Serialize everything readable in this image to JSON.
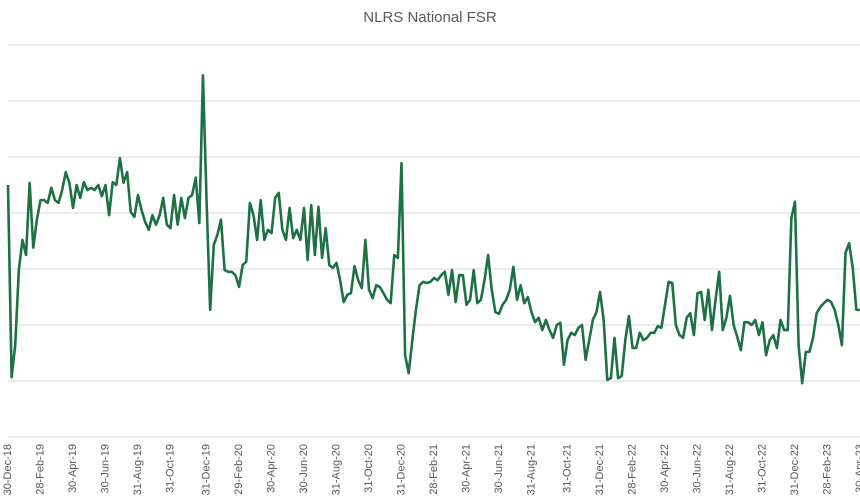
{
  "chart_data": {
    "type": "line",
    "title": "NLRS National FSR",
    "categories": [
      "30-Dec-18",
      null,
      null,
      null,
      null,
      null,
      null,
      null,
      null,
      "28-Feb-19",
      null,
      null,
      null,
      null,
      null,
      null,
      null,
      null,
      "30-Apr-19",
      null,
      null,
      null,
      null,
      null,
      null,
      null,
      null,
      "30-Jun-19",
      null,
      null,
      null,
      null,
      null,
      null,
      null,
      null,
      "31-Aug-19",
      null,
      null,
      null,
      null,
      null,
      null,
      null,
      null,
      "31-Oct-19",
      null,
      null,
      null,
      null,
      null,
      null,
      null,
      null,
      null,
      "31-Dec-19",
      null,
      null,
      null,
      null,
      null,
      null,
      null,
      null,
      "29-Feb-20",
      null,
      null,
      null,
      null,
      null,
      null,
      null,
      null,
      "30-Apr-20",
      null,
      null,
      null,
      null,
      null,
      null,
      null,
      null,
      "30-Jun-20",
      null,
      null,
      null,
      null,
      null,
      null,
      null,
      null,
      "31-Aug-20",
      null,
      null,
      null,
      null,
      null,
      null,
      null,
      null,
      "31-Oct-20",
      null,
      null,
      null,
      null,
      null,
      null,
      null,
      null,
      "31-Dec-20",
      null,
      null,
      null,
      null,
      null,
      null,
      null,
      null,
      "28-Feb-21",
      null,
      null,
      null,
      null,
      null,
      null,
      null,
      null,
      "30-Apr-21",
      null,
      null,
      null,
      null,
      null,
      null,
      null,
      null,
      "30-Jun-21",
      null,
      null,
      null,
      null,
      null,
      null,
      null,
      null,
      "31-Aug-21",
      null,
      null,
      null,
      null,
      null,
      null,
      null,
      null,
      null,
      "31-Oct-21",
      null,
      null,
      null,
      null,
      null,
      null,
      null,
      null,
      "31-Dec-21",
      null,
      null,
      null,
      null,
      null,
      null,
      null,
      null,
      "28-Feb-22",
      null,
      null,
      null,
      null,
      null,
      null,
      null,
      null,
      "30-Apr-22",
      null,
      null,
      null,
      null,
      null,
      null,
      null,
      null,
      "30-Jun-22",
      null,
      null,
      null,
      null,
      null,
      null,
      null,
      null,
      "31-Aug-22",
      null,
      null,
      null,
      null,
      null,
      null,
      null,
      null,
      "31-Oct-22",
      null,
      null,
      null,
      null,
      null,
      null,
      null,
      null,
      "31-Dec-22",
      null,
      null,
      null,
      null,
      null,
      null,
      null,
      null,
      "28-Feb-23",
      null,
      null,
      null,
      null,
      null,
      null,
      null,
      null,
      "30-Apr-23"
    ],
    "values": [
      4.5,
      1.07,
      1.64,
      2.98,
      3.52,
      3.25,
      4.54,
      3.38,
      3.88,
      4.23,
      4.23,
      4.18,
      4.45,
      4.23,
      4.18,
      4.41,
      4.73,
      4.54,
      4.09,
      4.5,
      4.27,
      4.55,
      4.41,
      4.45,
      4.41,
      4.5,
      4.3,
      4.5,
      3.96,
      4.55,
      4.5,
      4.98,
      4.54,
      4.73,
      4.02,
      3.93,
      4.32,
      4.05,
      3.84,
      3.7,
      3.96,
      3.79,
      3.96,
      4.27,
      3.79,
      3.73,
      4.32,
      3.79,
      4.27,
      3.91,
      4.27,
      4.32,
      4.63,
      3.82,
      6.46,
      4.23,
      2.27,
      3.43,
      3.61,
      3.88,
      2.98,
      2.95,
      2.95,
      2.89,
      2.68,
      3.07,
      3.13,
      4.18,
      3.96,
      3.52,
      4.23,
      3.52,
      3.7,
      3.64,
      4.27,
      4.36,
      3.7,
      3.52,
      4.09,
      3.55,
      3.7,
      3.52,
      4.09,
      3.16,
      4.14,
      3.25,
      4.11,
      3.2,
      3.73,
      3.07,
      3.02,
      3.11,
      2.8,
      2.41,
      2.54,
      2.57,
      3.05,
      2.8,
      2.66,
      3.52,
      2.63,
      2.48,
      2.71,
      2.68,
      2.57,
      2.45,
      2.39,
      3.25,
      3.2,
      4.89,
      1.46,
      1.14,
      1.73,
      2.27,
      2.71,
      2.77,
      2.75,
      2.77,
      2.84,
      2.8,
      2.89,
      2.95,
      2.54,
      2.98,
      2.41,
      2.89,
      2.89,
      2.36,
      2.45,
      2.98,
      2.39,
      2.45,
      2.8,
      3.25,
      2.63,
      2.23,
      2.2,
      2.36,
      2.45,
      2.63,
      3.04,
      2.45,
      2.71,
      2.39,
      2.5,
      2.23,
      2.05,
      2.13,
      1.91,
      2.09,
      1.91,
      1.77,
      2.0,
      2.04,
      1.29,
      1.73,
      1.86,
      1.82,
      1.95,
      2.0,
      1.38,
      1.73,
      2.09,
      2.23,
      2.59,
      2.09,
      1.02,
      1.05,
      1.77,
      1.05,
      1.09,
      1.73,
      2.16,
      1.59,
      1.59,
      1.86,
      1.73,
      1.77,
      1.86,
      1.86,
      1.98,
      1.95,
      2.36,
      2.77,
      2.75,
      2.0,
      1.82,
      1.77,
      2.13,
      2.21,
      1.82,
      2.57,
      2.59,
      2.09,
      2.63,
      1.91,
      2.45,
      2.95,
      1.91,
      2.13,
      2.52,
      2.0,
      1.79,
      1.55,
      2.05,
      2.05,
      2.0,
      2.09,
      1.82,
      2.05,
      1.46,
      1.73,
      1.82,
      1.59,
      2.09,
      1.91,
      1.91,
      3.91,
      4.2,
      1.64,
      0.96,
      1.52,
      1.52,
      1.77,
      2.21,
      2.32,
      2.39,
      2.45,
      2.41,
      2.27,
      2.0,
      1.64,
      3.29,
      3.46,
      3.02,
      2.27,
      2.27
    ],
    "color": "#1e7145",
    "ylim": [
      0,
      7
    ],
    "yticks": [
      0,
      1,
      2,
      3,
      4,
      5,
      6,
      7
    ],
    "grid": true
  }
}
